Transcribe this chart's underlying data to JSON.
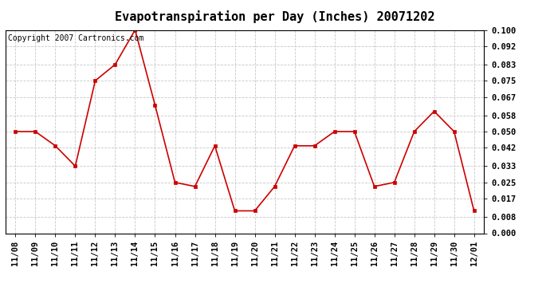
{
  "title": "Evapotranspiration per Day (Inches) 20071202",
  "copyright": "Copyright 2007 Cartronics.com",
  "x_labels": [
    "11/08",
    "11/09",
    "11/10",
    "11/11",
    "11/12",
    "11/13",
    "11/14",
    "11/15",
    "11/16",
    "11/17",
    "11/18",
    "11/19",
    "11/20",
    "11/21",
    "11/22",
    "11/23",
    "11/24",
    "11/25",
    "11/26",
    "11/27",
    "11/28",
    "11/29",
    "11/30",
    "12/01"
  ],
  "y_values": [
    0.05,
    0.05,
    0.043,
    0.033,
    0.075,
    0.083,
    0.1,
    0.063,
    0.025,
    0.023,
    0.043,
    0.011,
    0.011,
    0.023,
    0.043,
    0.043,
    0.05,
    0.05,
    0.023,
    0.025,
    0.05,
    0.06,
    0.05,
    0.011
  ],
  "y_ticks": [
    0.0,
    0.008,
    0.017,
    0.025,
    0.033,
    0.042,
    0.05,
    0.058,
    0.067,
    0.075,
    0.083,
    0.092,
    0.1
  ],
  "line_color": "#cc0000",
  "marker_color": "#cc0000",
  "background_color": "#ffffff",
  "grid_color": "#c8c8c8",
  "y_min": 0.0,
  "y_max": 0.1,
  "title_fontsize": 11,
  "copyright_fontsize": 7,
  "tick_fontsize": 7.5
}
